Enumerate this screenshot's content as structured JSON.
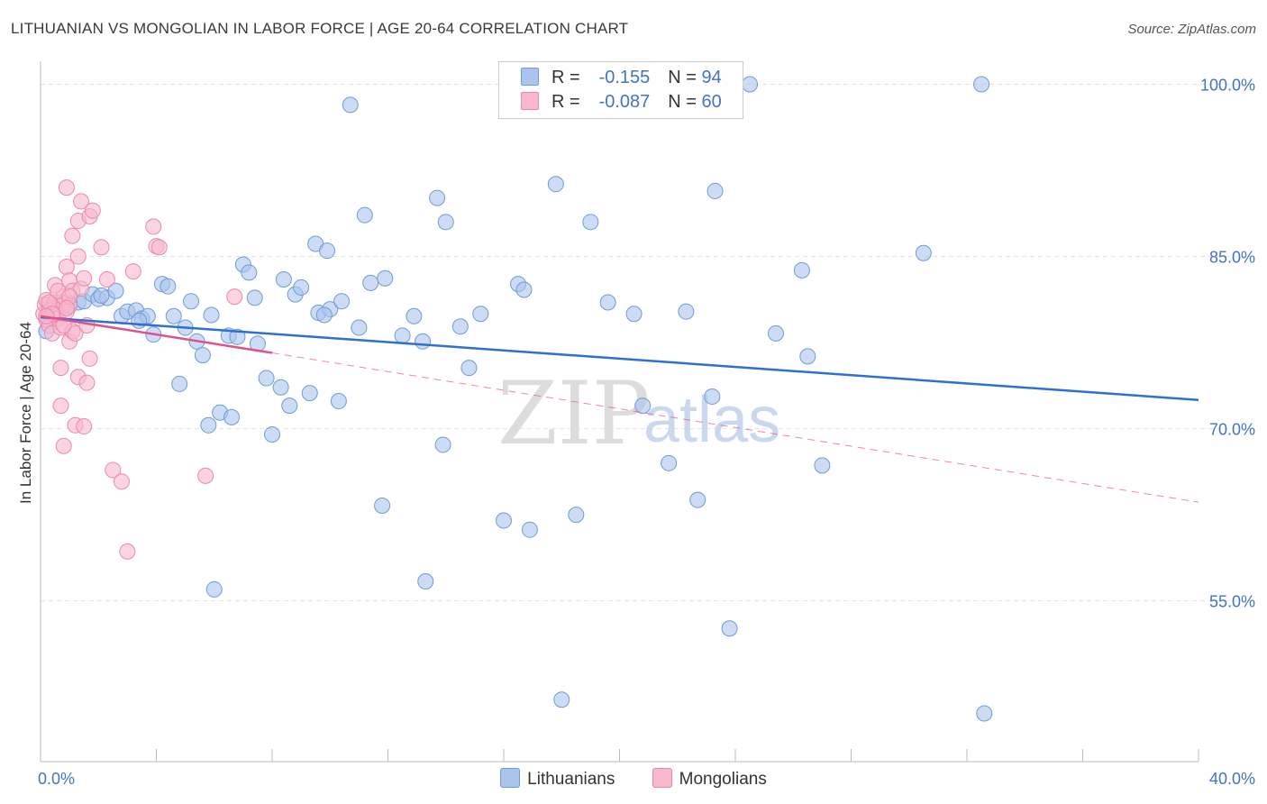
{
  "title": "LITHUANIAN VS MONGOLIAN IN LABOR FORCE | AGE 20-64 CORRELATION CHART",
  "source": "Source: ZipAtlas.com",
  "watermark": {
    "zip": "ZIP",
    "atlas": "atlas"
  },
  "legend": {
    "lithuanians": {
      "r_label": "R =",
      "r_value": "-0.155",
      "n_label": "N =",
      "n_value": "94"
    },
    "mongolians": {
      "r_label": "R =",
      "r_value": "-0.087",
      "n_label": "N =",
      "n_value": "60"
    }
  },
  "bottom_legend": {
    "lithuanians": "Lithuanians",
    "mongolians": "Mongolians"
  },
  "colors": {
    "lithuanians_fill": "#aac4ec",
    "lithuanians_stroke": "#6f9bd8",
    "lithuanians_line": "#2f6fd0",
    "mongolians_fill": "#f6b8cc",
    "mongolians_stroke": "#e98aaa",
    "mongolians_line": "#e0538a",
    "tick_text": "#4472c4",
    "grid": "#e2e2e2"
  },
  "chart_data": {
    "type": "scatter",
    "xlabel": "",
    "ylabel": "In Labor Force | Age 20-64",
    "xlim": [
      0,
      40
    ],
    "ylim": [
      41,
      102
    ],
    "x_ticks": [
      {
        "value": 0,
        "label": "0.0%"
      },
      {
        "value": 40,
        "label": "40.0%"
      }
    ],
    "y_ticks": [
      {
        "value": 55,
        "label": "55.0%"
      },
      {
        "value": 70,
        "label": "70.0%"
      },
      {
        "value": 85,
        "label": "85.0%"
      },
      {
        "value": 100,
        "label": "100.0%"
      }
    ],
    "grid": true,
    "legend_position": "top-center",
    "series": [
      {
        "name": "Lithuanians",
        "r": -0.155,
        "n": 94,
        "trend": {
          "x": [
            0,
            40
          ],
          "y": [
            79.7,
            72.5
          ]
        },
        "points": [
          [
            0.2,
            78.5
          ],
          [
            0.5,
            80.6
          ],
          [
            0.7,
            81.0
          ],
          [
            0.8,
            80.7
          ],
          [
            1.3,
            81.0
          ],
          [
            1.5,
            81.1
          ],
          [
            1.8,
            81.7
          ],
          [
            2.0,
            81.3
          ],
          [
            2.3,
            81.4
          ],
          [
            2.6,
            82.0
          ],
          [
            2.8,
            79.8
          ],
          [
            3.0,
            80.2
          ],
          [
            3.3,
            80.3
          ],
          [
            3.5,
            79.6
          ],
          [
            3.7,
            79.8
          ],
          [
            3.9,
            78.2
          ],
          [
            4.2,
            82.6
          ],
          [
            4.4,
            82.4
          ],
          [
            4.6,
            79.8
          ],
          [
            4.8,
            73.9
          ],
          [
            5.0,
            78.8
          ],
          [
            5.2,
            81.1
          ],
          [
            5.4,
            77.6
          ],
          [
            5.6,
            76.4
          ],
          [
            5.8,
            70.3
          ],
          [
            5.9,
            79.9
          ],
          [
            6.0,
            56.0
          ],
          [
            6.2,
            71.4
          ],
          [
            6.5,
            78.1
          ],
          [
            6.6,
            71.0
          ],
          [
            7.0,
            84.3
          ],
          [
            7.2,
            83.6
          ],
          [
            7.4,
            81.4
          ],
          [
            7.5,
            77.4
          ],
          [
            7.8,
            74.4
          ],
          [
            8.0,
            69.5
          ],
          [
            8.3,
            73.6
          ],
          [
            8.4,
            83.0
          ],
          [
            8.6,
            72.0
          ],
          [
            8.8,
            81.7
          ],
          [
            9.0,
            82.3
          ],
          [
            9.3,
            73.1
          ],
          [
            9.5,
            86.1
          ],
          [
            9.6,
            80.1
          ],
          [
            9.9,
            85.5
          ],
          [
            10.0,
            80.4
          ],
          [
            10.3,
            72.4
          ],
          [
            10.4,
            81.1
          ],
          [
            10.7,
            98.2
          ],
          [
            11.0,
            78.8
          ],
          [
            11.2,
            88.6
          ],
          [
            11.4,
            82.7
          ],
          [
            11.8,
            63.3
          ],
          [
            11.9,
            83.1
          ],
          [
            12.5,
            78.1
          ],
          [
            12.9,
            79.8
          ],
          [
            13.2,
            77.6
          ],
          [
            13.3,
            56.7
          ],
          [
            13.7,
            90.1
          ],
          [
            13.9,
            68.6
          ],
          [
            14.0,
            88.0
          ],
          [
            14.5,
            78.9
          ],
          [
            14.8,
            75.3
          ],
          [
            15.2,
            80.0
          ],
          [
            16.0,
            62.0
          ],
          [
            16.5,
            82.6
          ],
          [
            16.7,
            82.1
          ],
          [
            16.9,
            61.2
          ],
          [
            17.8,
            91.3
          ],
          [
            18.0,
            46.4
          ],
          [
            18.5,
            62.5
          ],
          [
            19.0,
            88.0
          ],
          [
            19.6,
            81.0
          ],
          [
            20.5,
            80.0
          ],
          [
            20.8,
            72.0
          ],
          [
            21.7,
            67.0
          ],
          [
            22.3,
            80.2
          ],
          [
            22.7,
            63.8
          ],
          [
            23.2,
            72.8
          ],
          [
            23.3,
            90.7
          ],
          [
            23.8,
            52.6
          ],
          [
            24.5,
            100.0
          ],
          [
            25.4,
            78.3
          ],
          [
            26.3,
            83.8
          ],
          [
            26.5,
            76.3
          ],
          [
            27.0,
            66.8
          ],
          [
            30.5,
            85.3
          ],
          [
            32.5,
            100.0
          ],
          [
            32.6,
            45.2
          ],
          [
            2.1,
            81.6
          ],
          [
            1.0,
            80.9
          ],
          [
            3.4,
            79.4
          ],
          [
            6.8,
            78.0
          ],
          [
            9.8,
            79.9
          ]
        ]
      },
      {
        "name": "Mongolians",
        "r": -0.087,
        "n": 60,
        "trend": {
          "x": [
            0,
            8
          ],
          "y": [
            79.8,
            76.6
          ]
        },
        "trend_extension": {
          "x": [
            8,
            40
          ],
          "y": [
            76.6,
            63.6
          ]
        },
        "points": [
          [
            0.1,
            80.0
          ],
          [
            0.15,
            80.8
          ],
          [
            0.2,
            79.5
          ],
          [
            0.2,
            81.2
          ],
          [
            0.3,
            80.3
          ],
          [
            0.3,
            79.0
          ],
          [
            0.4,
            80.6
          ],
          [
            0.4,
            78.3
          ],
          [
            0.5,
            79.9
          ],
          [
            0.5,
            81.0
          ],
          [
            0.5,
            82.5
          ],
          [
            0.6,
            80.3
          ],
          [
            0.6,
            79.6
          ],
          [
            0.7,
            78.8
          ],
          [
            0.7,
            75.3
          ],
          [
            0.7,
            72.0
          ],
          [
            0.8,
            80.9
          ],
          [
            0.8,
            81.5
          ],
          [
            0.8,
            68.5
          ],
          [
            0.9,
            84.1
          ],
          [
            0.9,
            91.0
          ],
          [
            0.9,
            80.2
          ],
          [
            1.0,
            82.9
          ],
          [
            1.0,
            77.6
          ],
          [
            1.0,
            80.7
          ],
          [
            1.1,
            86.8
          ],
          [
            1.1,
            82.0
          ],
          [
            1.1,
            78.5
          ],
          [
            1.2,
            70.3
          ],
          [
            1.2,
            78.3
          ],
          [
            1.3,
            88.1
          ],
          [
            1.3,
            85.0
          ],
          [
            1.3,
            74.5
          ],
          [
            1.4,
            89.8
          ],
          [
            1.4,
            82.2
          ],
          [
            1.5,
            83.1
          ],
          [
            1.5,
            70.2
          ],
          [
            1.6,
            79.0
          ],
          [
            1.6,
            74.0
          ],
          [
            1.7,
            88.5
          ],
          [
            1.7,
            76.1
          ],
          [
            1.8,
            89.0
          ],
          [
            2.1,
            85.8
          ],
          [
            2.3,
            83.0
          ],
          [
            2.5,
            66.4
          ],
          [
            2.8,
            65.4
          ],
          [
            3.0,
            59.3
          ],
          [
            3.2,
            83.7
          ],
          [
            3.9,
            87.6
          ],
          [
            4.0,
            85.9
          ],
          [
            4.1,
            85.8
          ],
          [
            5.7,
            65.9
          ],
          [
            6.7,
            81.5
          ],
          [
            0.3,
            81.0
          ],
          [
            0.4,
            80.0
          ],
          [
            0.6,
            82.0
          ],
          [
            0.8,
            79.0
          ],
          [
            1.0,
            81.5
          ],
          [
            0.2,
            79.8
          ],
          [
            0.9,
            80.5
          ]
        ]
      }
    ]
  }
}
